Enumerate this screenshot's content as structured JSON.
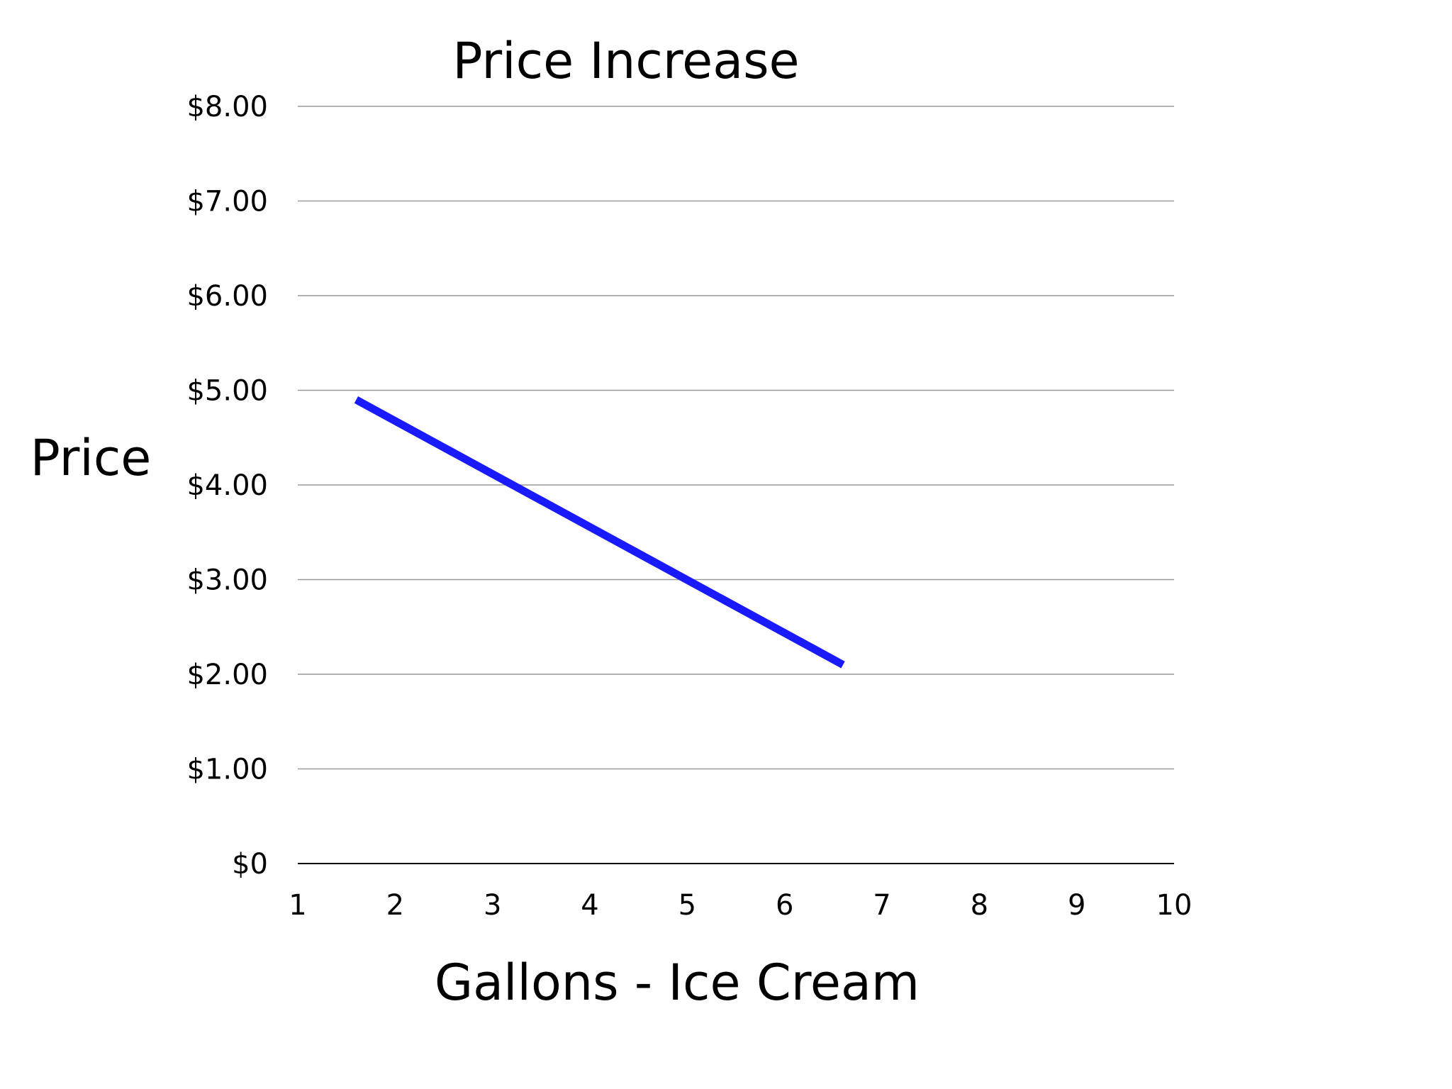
{
  "chart_data": {
    "type": "line",
    "title": "Price Increase",
    "xlabel": "Gallons - Ice Cream",
    "ylabel": "Price",
    "x_ticks": [
      "1",
      "2",
      "3",
      "4",
      "5",
      "6",
      "7",
      "8",
      "9",
      "10"
    ],
    "y_ticks": [
      "$0",
      "$1.00",
      "$2.00",
      "$3.00",
      "$4.00",
      "$5.00",
      "$6.00",
      "$7.00",
      "$8.00"
    ],
    "xlim": [
      1,
      10
    ],
    "ylim": [
      0,
      8
    ],
    "grid": true,
    "series": [
      {
        "color": "#1a1aff",
        "points": [
          {
            "x": 1.6,
            "y": 4.9
          },
          {
            "x": 6.6,
            "y": 2.1
          }
        ]
      }
    ],
    "colors": {
      "gridline": "#9a9a9a",
      "baseline": "#000000"
    }
  }
}
